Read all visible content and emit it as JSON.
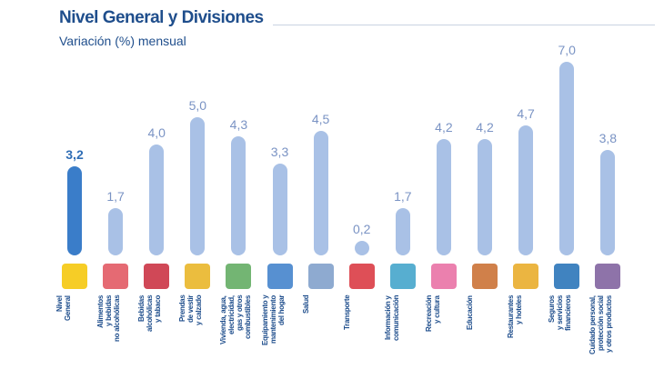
{
  "header": {
    "title": "Nivel General y Divisiones",
    "subtitle": "Variación (%) mensual"
  },
  "chart_data": {
    "type": "bar",
    "title": "Nivel General y Divisiones",
    "subtitle": "Variación (%) mensual",
    "xlabel": "",
    "ylabel": "Variación (%) mensual",
    "ylim": [
      0,
      7
    ],
    "grid": false,
    "categories": [
      "Nivel\nGeneral",
      "Alimentos\ny bebidas\nno alcohólicas",
      "Bebidas\nalcohólicas\ny tabaco",
      "Prendas\nde vestir\ny calzado",
      "Vivienda, agua,\nelectricidad,\ngas y otros\ncombustibles",
      "Equipamiento y\nmantenimiento\ndel hogar",
      "Salud",
      "Transporte",
      "Información y\ncomunicación",
      "Recreación\ny cultura",
      "Educación",
      "Restaurantes\ny hoteles",
      "Seguros\ny servicios\nfinancieros",
      "Cuidado personal,\nprotección social\ny otros productos"
    ],
    "values": [
      3.2,
      1.7,
      4.0,
      5.0,
      4.3,
      3.3,
      4.5,
      0.2,
      1.7,
      4.2,
      4.2,
      4.7,
      7.0,
      3.8
    ],
    "labels": [
      "3,2",
      "1,7",
      "4,0",
      "5,0",
      "4,3",
      "3,3",
      "4,5",
      "0,2",
      "1,7",
      "4,2",
      "4,2",
      "4,7",
      "7,0",
      "3,8"
    ],
    "icons": [
      "ipc-ba-logo-icon",
      "food-icon",
      "bottles-icon",
      "jacket-icon",
      "house-icon",
      "appliance-icon",
      "doctor-icon",
      "car-plane-icon",
      "computer-icon",
      "theater-masks-icon",
      "school-icon",
      "restaurant-icon",
      "bank-icon",
      "personal-care-icon"
    ],
    "icon_colors": [
      "#f5c400",
      "#e0505a",
      "#c8283a",
      "#e8b21c",
      "#5aa85a",
      "#3a7dc9",
      "#7a9bc8",
      "#d8303a",
      "#3aa0c8",
      "#e86aa0",
      "#c86a2a",
      "#e8a820",
      "#1f6db5",
      "#7a5a9a"
    ],
    "colors": {
      "highlight": "#3a7dc9",
      "bars": "#a9c1e6"
    }
  }
}
